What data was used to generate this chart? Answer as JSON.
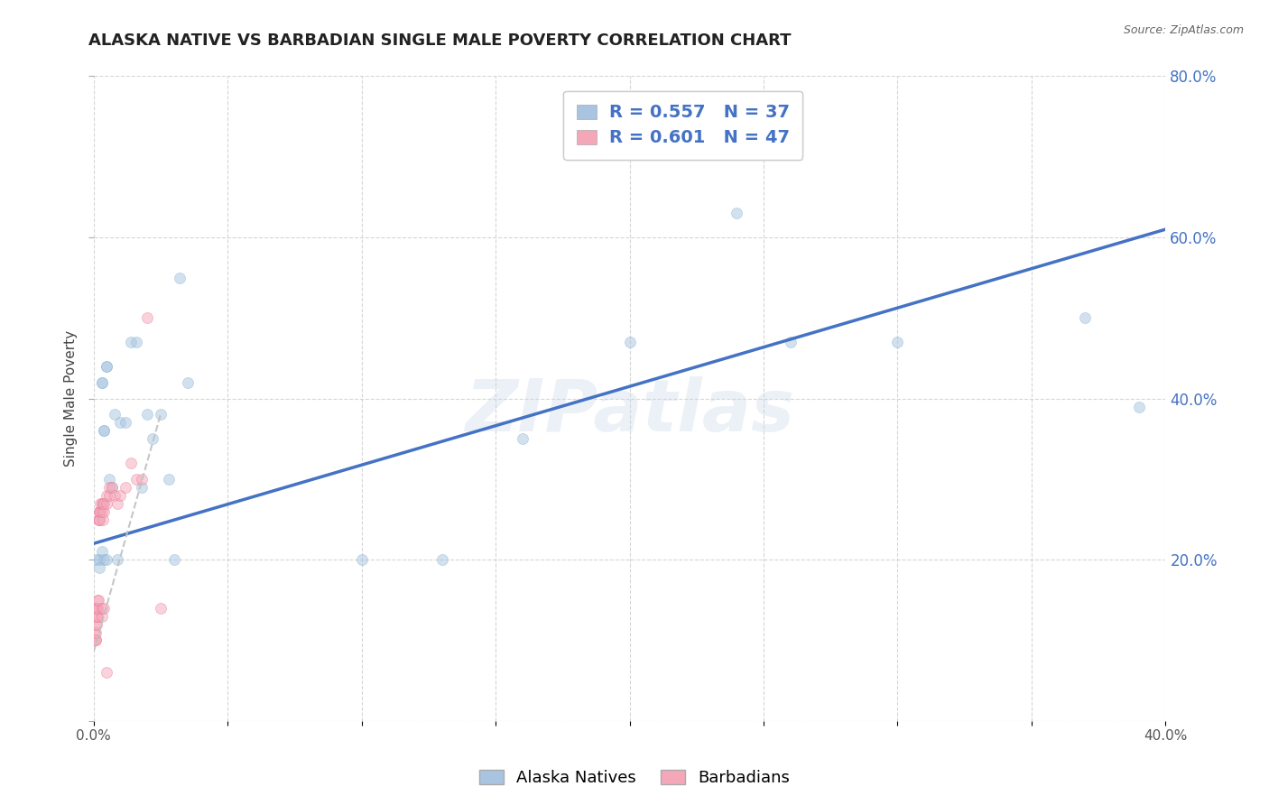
{
  "title": "ALASKA NATIVE VS BARBADIAN SINGLE MALE POVERTY CORRELATION CHART",
  "source": "Source: ZipAtlas.com",
  "ylabel": "Single Male Poverty",
  "watermark": "ZIPatlas",
  "legend_entries": [
    {
      "label": "R = 0.557   N = 37",
      "color": "#a8c4e0"
    },
    {
      "label": "R = 0.601   N = 47",
      "color": "#f4a7b9"
    }
  ],
  "legend_bottom": [
    "Alaska Natives",
    "Barbadians"
  ],
  "xlim": [
    0.0,
    0.4
  ],
  "ylim": [
    0.0,
    0.8
  ],
  "xtick_positions": [
    0.0,
    0.05,
    0.1,
    0.15,
    0.2,
    0.25,
    0.3,
    0.35,
    0.4
  ],
  "xtick_labels": [
    "0.0%",
    "",
    "",
    "",
    "",
    "",
    "",
    "",
    "40.0%"
  ],
  "ytick_positions": [
    0.0,
    0.2,
    0.4,
    0.6,
    0.8
  ],
  "ytick_labels_right": [
    "",
    "20.0%",
    "40.0%",
    "60.0%",
    "80.0%"
  ],
  "alaska_x": [
    0.001,
    0.002,
    0.002,
    0.003,
    0.003,
    0.003,
    0.004,
    0.004,
    0.004,
    0.005,
    0.005,
    0.005,
    0.006,
    0.007,
    0.008,
    0.009,
    0.01,
    0.012,
    0.014,
    0.016,
    0.018,
    0.02,
    0.022,
    0.025,
    0.028,
    0.03,
    0.032,
    0.035,
    0.1,
    0.13,
    0.16,
    0.2,
    0.24,
    0.26,
    0.3,
    0.37,
    0.39
  ],
  "alaska_y": [
    0.2,
    0.2,
    0.19,
    0.42,
    0.42,
    0.21,
    0.36,
    0.36,
    0.2,
    0.44,
    0.44,
    0.2,
    0.3,
    0.29,
    0.38,
    0.2,
    0.37,
    0.37,
    0.47,
    0.47,
    0.29,
    0.38,
    0.35,
    0.38,
    0.3,
    0.2,
    0.55,
    0.42,
    0.2,
    0.2,
    0.35,
    0.47,
    0.63,
    0.47,
    0.47,
    0.5,
    0.39
  ],
  "barbadian_x": [
    0.0005,
    0.0006,
    0.0007,
    0.0008,
    0.0008,
    0.0009,
    0.001,
    0.001,
    0.001,
    0.0012,
    0.0012,
    0.0013,
    0.0015,
    0.0015,
    0.0016,
    0.0017,
    0.0018,
    0.002,
    0.002,
    0.0022,
    0.0022,
    0.0025,
    0.0025,
    0.003,
    0.003,
    0.003,
    0.003,
    0.0035,
    0.0035,
    0.004,
    0.004,
    0.004,
    0.005,
    0.005,
    0.006,
    0.006,
    0.007,
    0.008,
    0.009,
    0.01,
    0.012,
    0.014,
    0.016,
    0.018,
    0.02,
    0.025,
    0.005
  ],
  "barbadian_y": [
    0.1,
    0.11,
    0.1,
    0.1,
    0.11,
    0.12,
    0.12,
    0.13,
    0.14,
    0.13,
    0.14,
    0.14,
    0.13,
    0.14,
    0.15,
    0.15,
    0.25,
    0.25,
    0.26,
    0.26,
    0.25,
    0.26,
    0.27,
    0.26,
    0.27,
    0.13,
    0.14,
    0.27,
    0.25,
    0.27,
    0.26,
    0.14,
    0.27,
    0.28,
    0.28,
    0.29,
    0.29,
    0.28,
    0.27,
    0.28,
    0.29,
    0.32,
    0.3,
    0.3,
    0.5,
    0.14,
    0.06
  ],
  "alaska_trend_x": [
    0.0,
    0.4
  ],
  "alaska_trend_y": [
    0.22,
    0.61
  ],
  "barbadian_trend_x": [
    0.0,
    0.025
  ],
  "barbadian_trend_y": [
    0.085,
    0.38
  ],
  "background_color": "#ffffff",
  "grid_color": "#cccccc",
  "title_fontsize": 13,
  "axis_label_fontsize": 11,
  "dot_alpha": 0.5,
  "dot_size": 75
}
